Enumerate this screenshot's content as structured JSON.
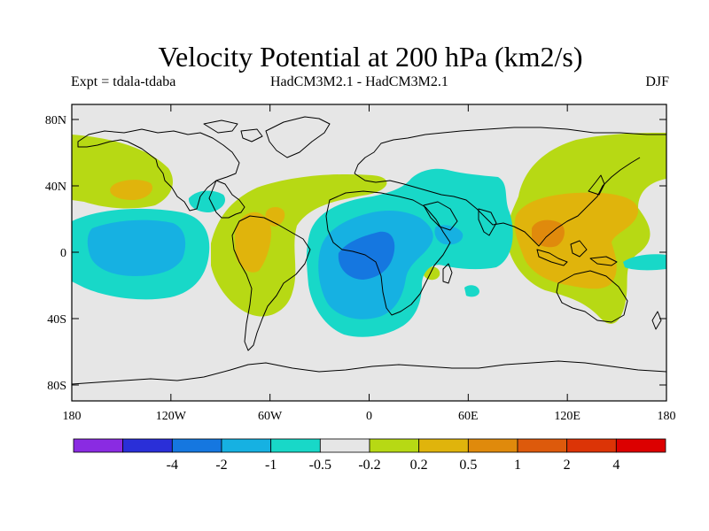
{
  "title": "Velocity Potential at 200 hPa (km2/s)",
  "subtitle_left": "Expt = tdala-tdaba",
  "subtitle_center": "HadCM3M2.1 - HadCM3M2.1",
  "subtitle_right": "DJF",
  "y_ticks": [
    "80N",
    "40N",
    "0",
    "40S",
    "80S"
  ],
  "x_ticks": [
    "180",
    "120W",
    "60W",
    "0",
    "60E",
    "120E",
    "180"
  ],
  "colorbar": {
    "colors": [
      "#8a2be2",
      "#2a2fd8",
      "#1577e0",
      "#16b1e2",
      "#18d8c8",
      "#e6e6e6",
      "#b7d914",
      "#e0b40c",
      "#e08a0c",
      "#dd5a0c",
      "#dc3406",
      "#dc0000"
    ],
    "labels": [
      "-4",
      "-2",
      "-1",
      "-0.5",
      "-0.2",
      "0.2",
      "0.5",
      "1",
      "2",
      "4"
    ]
  },
  "map": {
    "background": "#e6e6e6",
    "coast_color": "#000000"
  }
}
